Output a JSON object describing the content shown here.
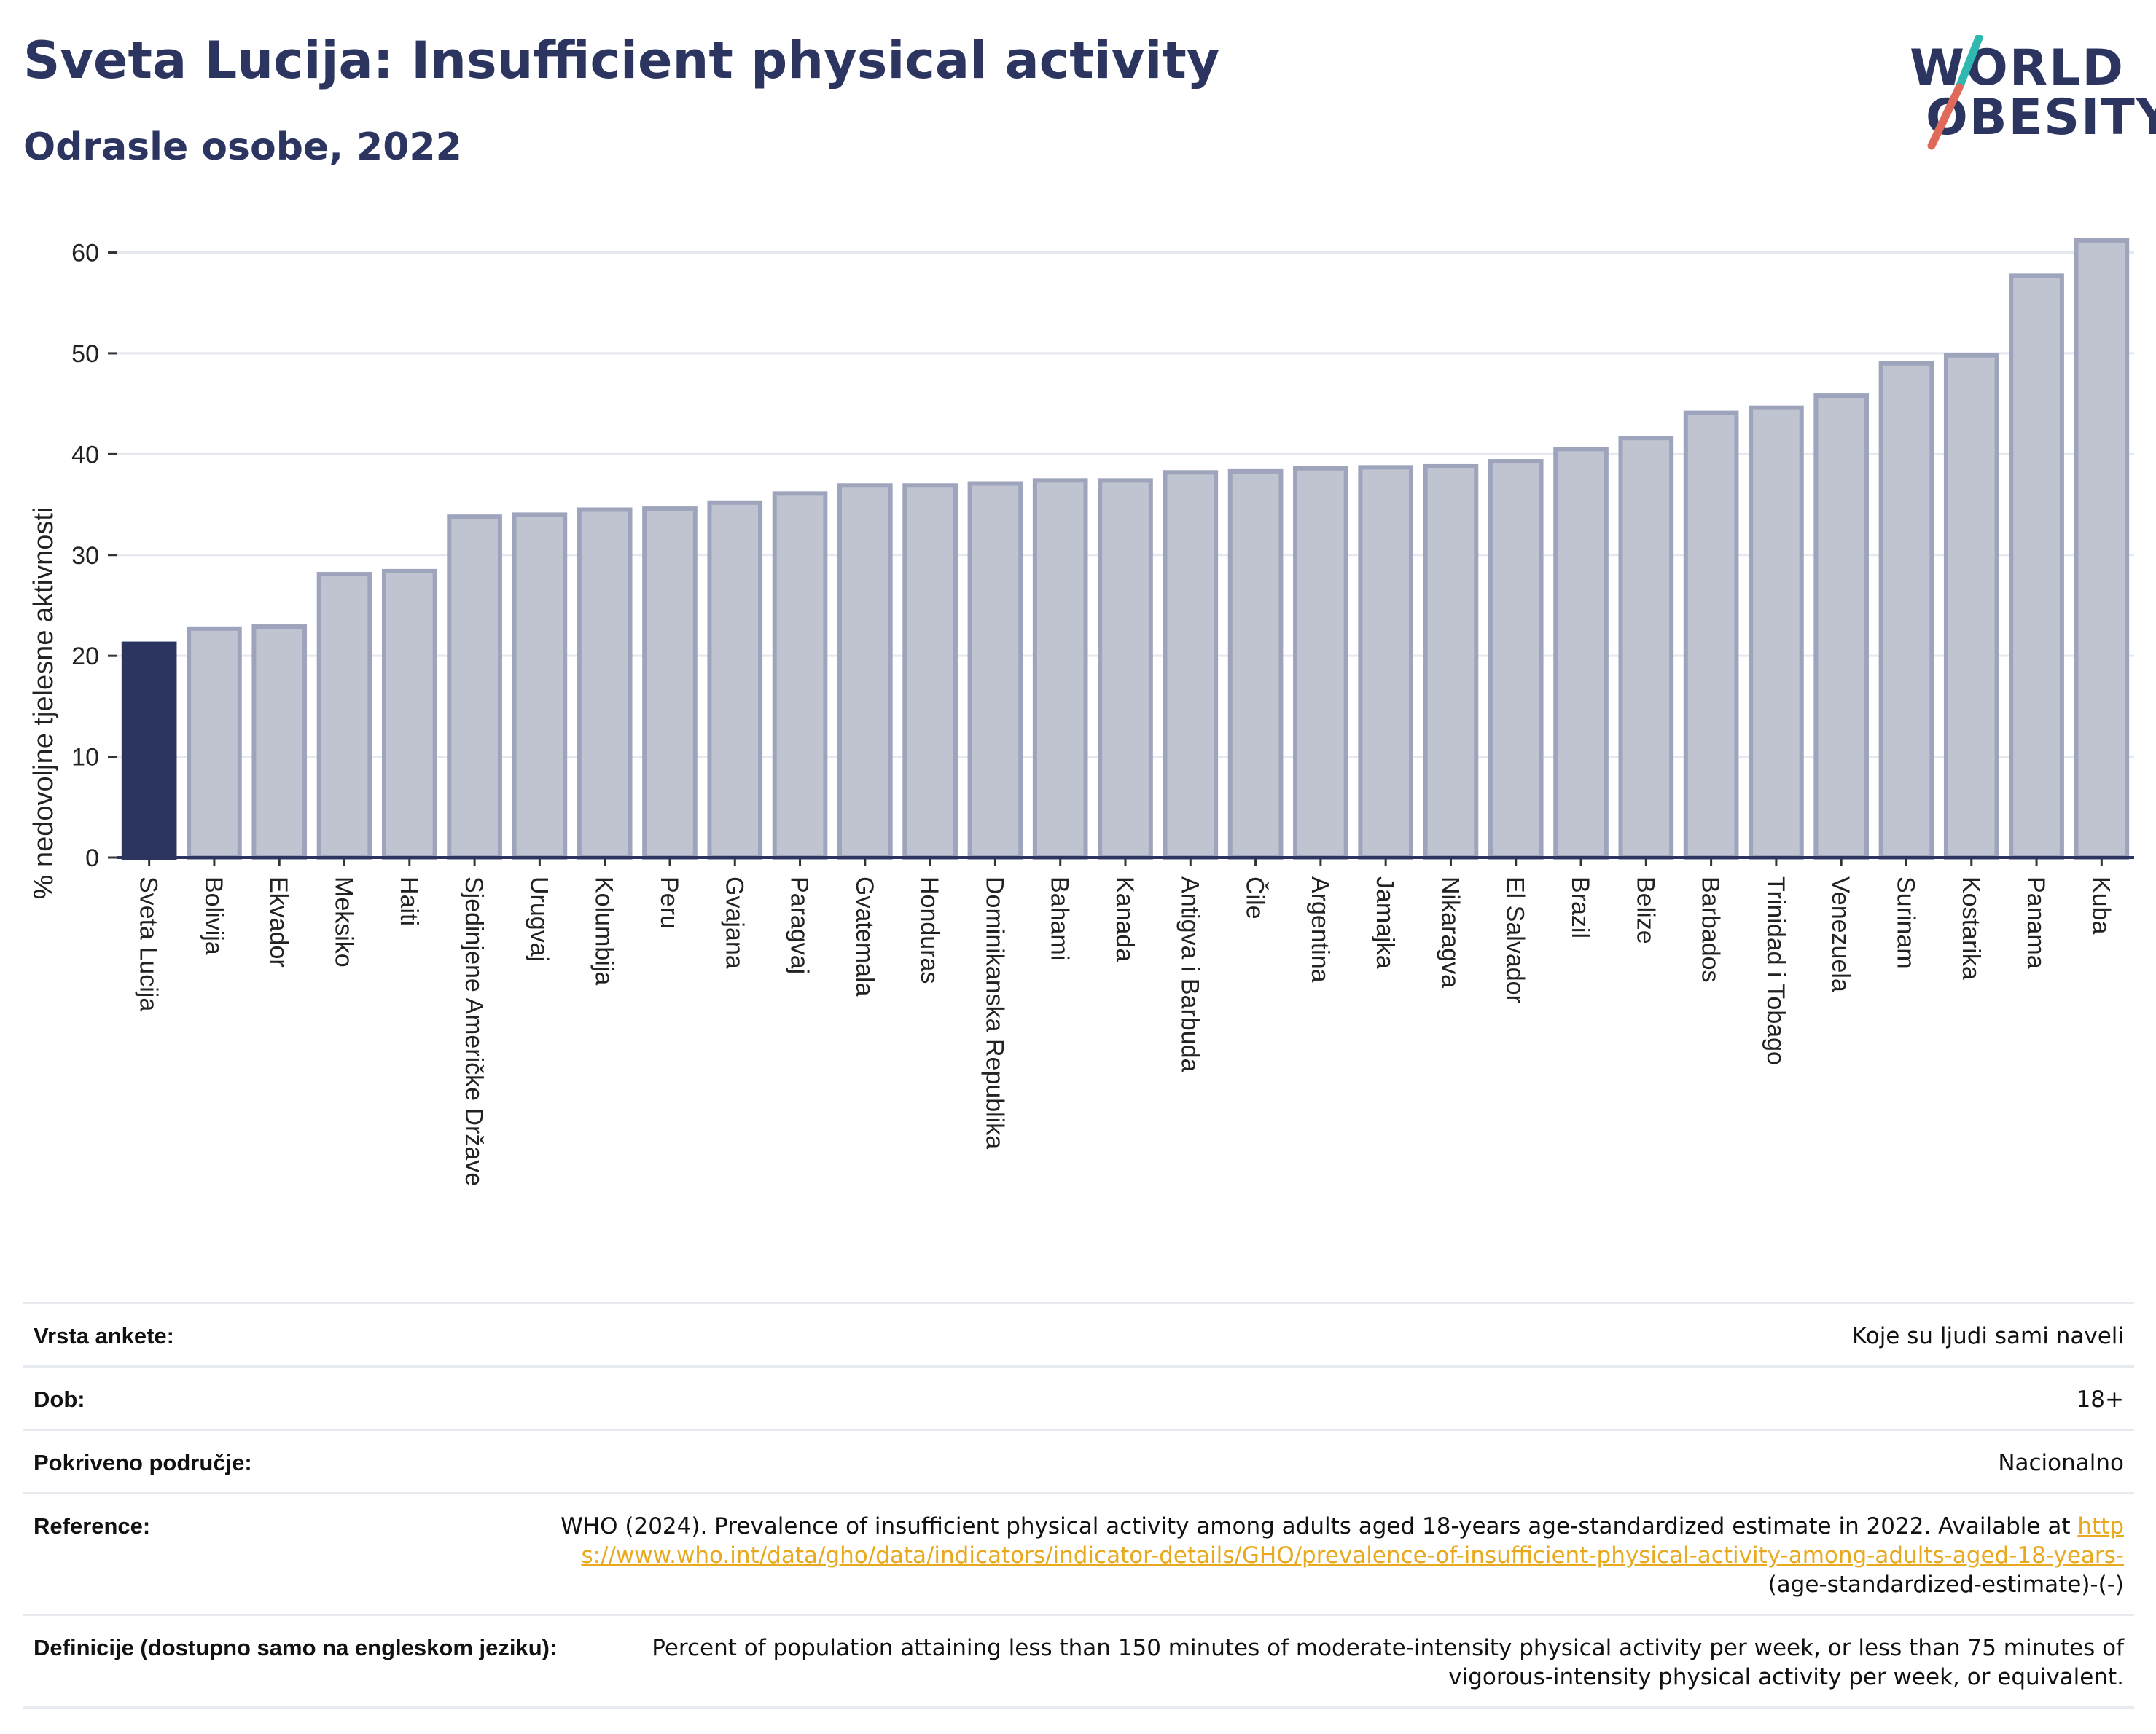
{
  "header": {
    "title": "Sveta Lucija: Insufficient physical activity",
    "subtitle": "Odrasle osobe, 2022"
  },
  "logo": {
    "line1": "WORLD",
    "line2": "OBESITY",
    "slash_top_color": "#2fb8b0",
    "slash_bottom_color": "#e06a5a"
  },
  "colors": {
    "highlight": "#2b3560",
    "bar_fill": "#c0c4d1",
    "bar_stroke": "#9ea4bb",
    "grid": "#e6e8f0",
    "axis": "#2b3560"
  },
  "chart_data": {
    "type": "bar",
    "ylabel": "% nedovoljne tjelesne aktivnosti",
    "ylim": [
      0,
      63
    ],
    "yticks": [
      0,
      10,
      20,
      30,
      40,
      50,
      60
    ],
    "grid": true,
    "highlight_category": "Sveta Lucija",
    "categories": [
      "Sveta Lucija",
      "Bolivija",
      "Ekvador",
      "Meksiko",
      "Haiti",
      "Sjedinjene Američke Države",
      "Urugvaj",
      "Kolumbija",
      "Peru",
      "Gvajana",
      "Paragvaj",
      "Gvatemala",
      "Honduras",
      "Dominikanska Republika",
      "Bahami",
      "Kanada",
      "Antigva i Barbuda",
      "Čile",
      "Argentina",
      "Jamajka",
      "Nikaragva",
      "El Salvador",
      "Brazil",
      "Belize",
      "Barbados",
      "Trinidad i Tobago",
      "Venezuela",
      "Surinam",
      "Kostarika",
      "Panama",
      "Kuba"
    ],
    "values": [
      21.2,
      22.7,
      22.9,
      28.1,
      28.4,
      33.8,
      34.0,
      34.5,
      34.6,
      35.2,
      36.1,
      36.9,
      36.9,
      37.1,
      37.4,
      37.4,
      38.2,
      38.3,
      38.6,
      38.7,
      38.8,
      39.3,
      40.5,
      41.6,
      44.1,
      44.6,
      45.8,
      49.0,
      49.8,
      57.7,
      61.2
    ]
  },
  "meta": {
    "rows": [
      {
        "key": "Vrsta ankete:",
        "value": "Koje su ljudi sami naveli"
      },
      {
        "key": "Dob:",
        "value": "18+"
      },
      {
        "key": "Pokriveno područje:",
        "value": "Nacionalno"
      }
    ],
    "reference": {
      "key": "Reference:",
      "text": "WHO (2024). Prevalence of insufficient physical activity among adults aged 18-years age-standardized estimate in 2022. Available at",
      "link": "https://www.who.int/data/gho/data/indicators/indicator-details/GHO/prevalence-of-insufficient-physical-activity-among-adults-aged-18-years-",
      "suffix": "(age-standardized-estimate)-(-)"
    },
    "definition": {
      "key": "Definicije (dostupno samo na engleskom jeziku):",
      "value": "Percent of population attaining less than 150 minutes of moderate-intensity physical activity per week, or less than 75 minutes of vigorous-intensity physical activity per week, or equivalent."
    }
  }
}
